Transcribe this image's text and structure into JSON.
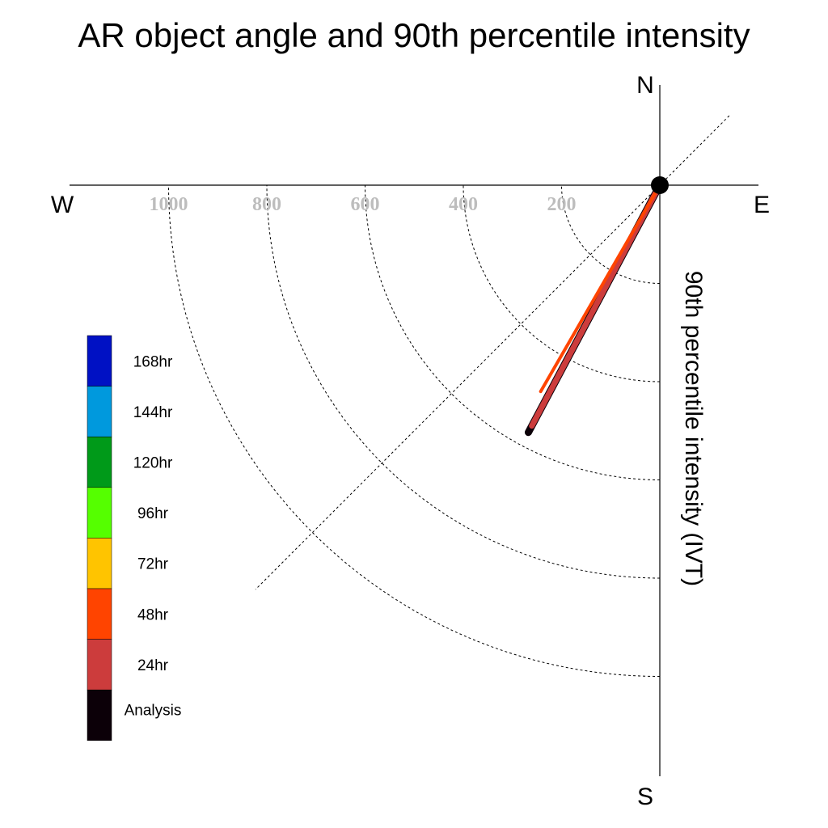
{
  "chart_data": {
    "type": "polar-vector",
    "title": "AR object angle and 90th percentile intensity",
    "radial_label": "90th percentile intensity (IVT)",
    "compass": {
      "north": "N",
      "south": "S",
      "east": "E",
      "west": "W"
    },
    "radial_ticks": [
      200,
      400,
      600,
      800,
      1000
    ],
    "radial_ticks_text": [
      "200",
      "400",
      "600",
      "800",
      "1000"
    ],
    "rmax": 1200,
    "quadrant": "south-west",
    "gridlines": "dashed",
    "legend_placement": "left",
    "legend": [
      {
        "label": "168hr",
        "color": "#0011c4"
      },
      {
        "label": "144hr",
        "color": "#0099dd"
      },
      {
        "label": "120hr",
        "color": "#009a19"
      },
      {
        "label": "96hr",
        "color": "#55ff00"
      },
      {
        "label": "72hr",
        "color": "#ffc400"
      },
      {
        "label": "48hr",
        "color": "#ff4400"
      },
      {
        "label": "24hr",
        "color": "#cc3c3c"
      },
      {
        "label": "Analysis",
        "color": "#0c0008"
      }
    ],
    "series": [
      {
        "name": "Analysis",
        "angle_deg": 208,
        "intensity": 570,
        "color": "#0c0008",
        "width": 9
      },
      {
        "name": "24hr",
        "angle_deg": 208,
        "intensity": 555,
        "color": "#cc3c3c",
        "width": 7
      },
      {
        "name": "48hr",
        "angle_deg": 210,
        "intensity": 485,
        "color": "#ff4400",
        "width": 4
      }
    ]
  }
}
